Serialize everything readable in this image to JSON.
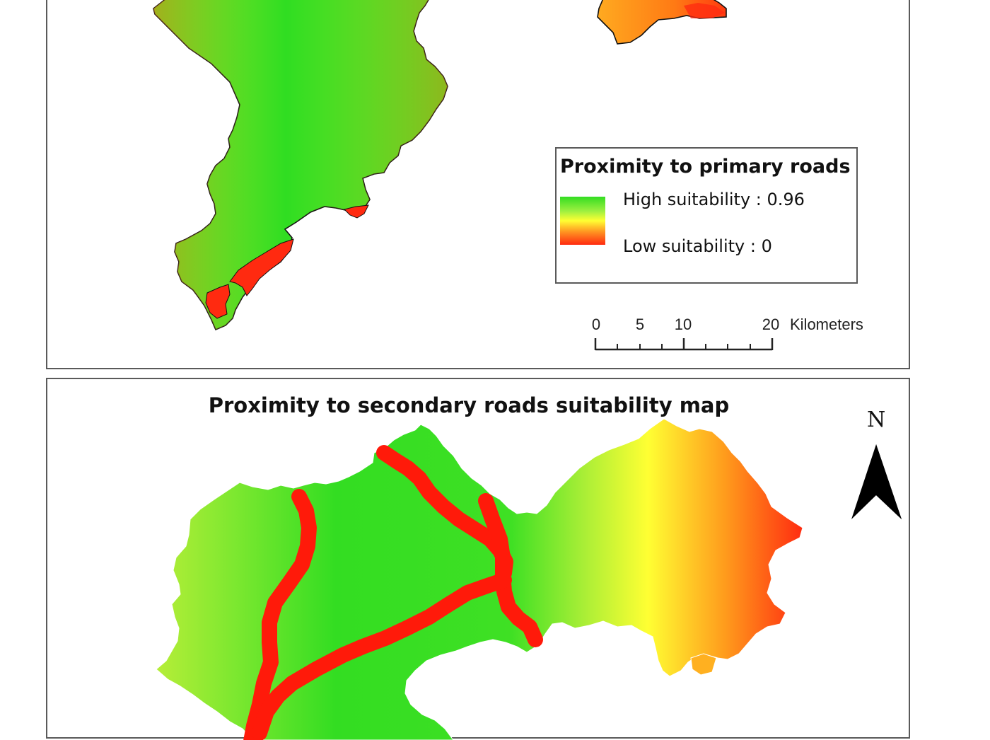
{
  "top_panel": {
    "legend": {
      "title": "Proximity to primary roads",
      "high_label": "High suitability : 0.96",
      "low_label": "Low suitability : 0",
      "colors": {
        "high": "#33dd22",
        "mid": "#ffff33",
        "low": "#ff2a10"
      }
    },
    "scale_bar": {
      "ticks": [
        "0",
        "5",
        "10",
        "20"
      ],
      "unit": "Kilometers"
    }
  },
  "bottom_panel": {
    "title": "Proximity to secondary roads suitability map",
    "north_arrow": {
      "label": "N",
      "icon": "north-arrow-icon"
    },
    "road_color": "#ff1a0a"
  }
}
